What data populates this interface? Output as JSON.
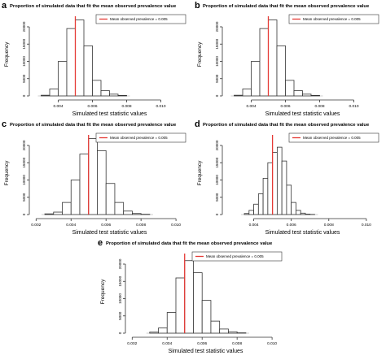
{
  "panels": [
    {
      "letter": "a",
      "title": "Proportion of simulated data that fit the mean observed prevalence value",
      "xlabel": "Simulated test statistic values",
      "ylabel": "Frequency",
      "legend": "Mean observed prevalence = 0.005",
      "chart_data": {
        "type": "bar",
        "x_tick_labels": [
          "0.004",
          "0.006",
          "0.008",
          "0.010"
        ],
        "x_ticks": [
          0.004,
          0.006,
          0.008,
          0.01
        ],
        "xlim": [
          0.0025,
          0.0115
        ],
        "y_tick_labels": [
          "0",
          "5000",
          "10000",
          "15000",
          "20000"
        ],
        "y_ticks": [
          0,
          5000,
          10000,
          15000,
          20000
        ],
        "ylim": [
          0,
          24000
        ],
        "bin_width": 0.0005,
        "bin_starts": [
          0.003,
          0.0035,
          0.004,
          0.0045,
          0.005,
          0.0055,
          0.006,
          0.0065,
          0.007,
          0.0075
        ],
        "values": [
          200,
          2000,
          10000,
          19500,
          22000,
          14500,
          4500,
          1500,
          500,
          150
        ],
        "reference_line": 0.005
      }
    },
    {
      "letter": "b",
      "title": "Proportion of simulated data that fit the mean observed prevalence value",
      "xlabel": "Simulated test statistic values",
      "ylabel": "Frequency",
      "legend": "Mean observed prevalence = 0.005",
      "chart_data": {
        "type": "bar",
        "x_tick_labels": [
          "0.004",
          "0.006",
          "0.008",
          "0.010"
        ],
        "x_ticks": [
          0.004,
          0.006,
          0.008,
          0.01
        ],
        "xlim": [
          0.0025,
          0.0115
        ],
        "y_tick_labels": [
          "0",
          "5000",
          "10000",
          "15000",
          "20000"
        ],
        "y_ticks": [
          0,
          5000,
          10000,
          15000,
          20000
        ],
        "ylim": [
          0,
          24000
        ],
        "bin_width": 0.0005,
        "bin_starts": [
          0.003,
          0.0035,
          0.004,
          0.0045,
          0.005,
          0.0055,
          0.006,
          0.0065,
          0.007,
          0.0075
        ],
        "values": [
          200,
          2000,
          10000,
          19500,
          22000,
          14500,
          4500,
          1500,
          500,
          150
        ],
        "reference_line": 0.005
      }
    },
    {
      "letter": "c",
      "title": "Proportion of simulated data that fit the mean observed prevalence value",
      "xlabel": "Simulated test statistic values",
      "ylabel": "Frequency",
      "legend": "Mean observed prevalence = 0.005",
      "chart_data": {
        "type": "bar",
        "x_tick_labels": [
          "0.002",
          "0.004",
          "0.006",
          "0.008",
          "0.010"
        ],
        "x_ticks": [
          0.002,
          0.004,
          0.006,
          0.008,
          0.01
        ],
        "xlim": [
          0.0018,
          0.0106
        ],
        "y_tick_labels": [
          "0",
          "5000",
          "10000",
          "15000",
          "20000"
        ],
        "y_ticks": [
          0,
          5000,
          10000,
          15000,
          20000
        ],
        "ylim": [
          0,
          24000
        ],
        "bin_width": 0.0005,
        "bin_starts": [
          0.0025,
          0.003,
          0.0035,
          0.004,
          0.0045,
          0.005,
          0.0055,
          0.006,
          0.0065,
          0.007,
          0.0075,
          0.008
        ],
        "values": [
          200,
          700,
          3500,
          10000,
          17500,
          22000,
          18500,
          9000,
          3500,
          1000,
          300,
          80
        ],
        "reference_line": 0.005
      }
    },
    {
      "letter": "d",
      "title": "Proportion of simulated data that fit the mean observed prevalence value",
      "xlabel": "Simulated test statistic values",
      "ylabel": "Frequency",
      "legend": "Mean observed prevalence = 0.005",
      "chart_data": {
        "type": "bar",
        "x_tick_labels": [
          "0.004",
          "0.006",
          "0.008",
          "0.010"
        ],
        "x_ticks": [
          0.004,
          0.006,
          0.008,
          0.01
        ],
        "xlim": [
          0.0025,
          0.0107
        ],
        "y_tick_labels": [
          "0",
          "5000",
          "10000",
          "15000",
          "20000"
        ],
        "y_ticks": [
          0,
          5000,
          10000,
          15000,
          20000
        ],
        "ylim": [
          0,
          24000
        ],
        "bin_width": 0.00025,
        "bin_starts": [
          0.0035,
          0.00375,
          0.004,
          0.00425,
          0.0045,
          0.00475,
          0.005,
          0.00525,
          0.0055,
          0.00575,
          0.006,
          0.00625,
          0.0065,
          0.00675,
          0.007
        ],
        "values": [
          300,
          1200,
          3000,
          6000,
          10500,
          15000,
          18000,
          19500,
          15500,
          8500,
          3500,
          1200,
          400,
          120,
          40
        ],
        "reference_line": 0.005
      }
    },
    {
      "letter": "e",
      "title": "Proportion of simulated data that fit the mean observed prevalence value",
      "xlabel": "Simulated test statistic values",
      "ylabel": "Frequency",
      "legend": "Mean observed prevalence = 0.005",
      "chart_data": {
        "type": "bar",
        "x_tick_labels": [
          "0.002",
          "0.004",
          "0.006",
          "0.008",
          "0.010"
        ],
        "x_ticks": [
          0.002,
          0.004,
          0.006,
          0.008,
          0.01
        ],
        "xlim": [
          0.0018,
          0.0106
        ],
        "y_tick_labels": [
          "0",
          "5000",
          "10000",
          "15000",
          "20000"
        ],
        "y_ticks": [
          0,
          5000,
          10000,
          15000,
          20000
        ],
        "ylim": [
          0,
          24000
        ],
        "bin_width": 0.0005,
        "bin_starts": [
          0.003,
          0.0035,
          0.004,
          0.0045,
          0.005,
          0.0055,
          0.006,
          0.0065,
          0.007,
          0.0075,
          0.008
        ],
        "values": [
          300,
          1500,
          6000,
          16000,
          21000,
          17500,
          9500,
          3500,
          1200,
          400,
          100
        ],
        "reference_line": 0.005
      }
    }
  ],
  "colors": {
    "reference_line": "#e53935",
    "bar_stroke": "#333333",
    "bar_fill": "#ffffff"
  }
}
